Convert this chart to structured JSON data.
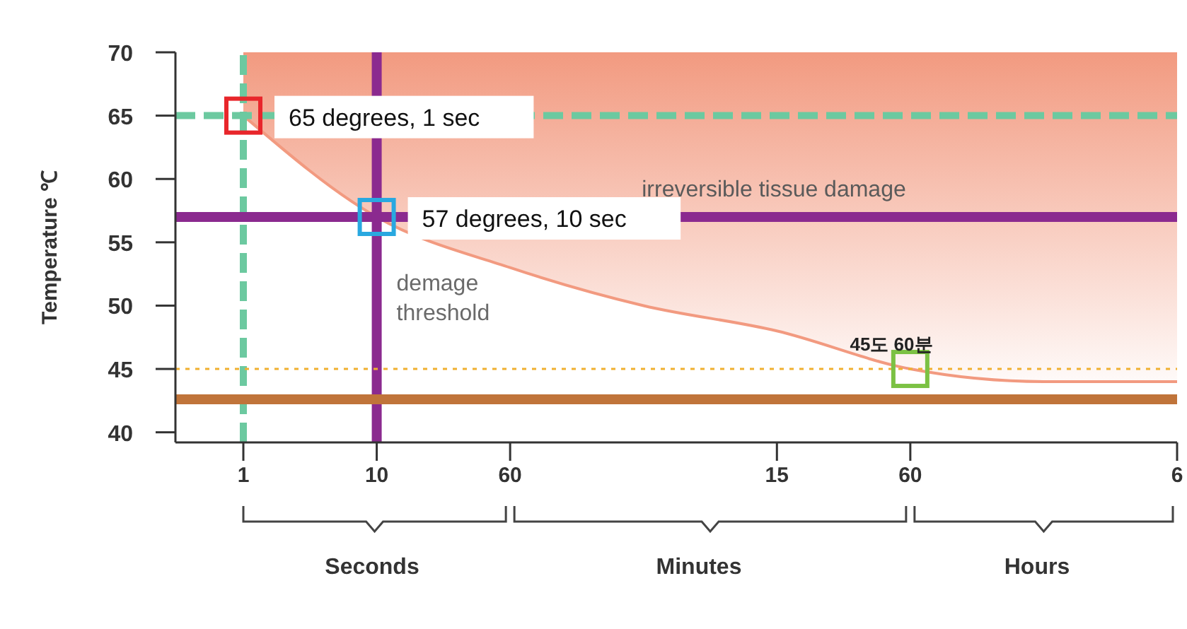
{
  "chart_data": {
    "type": "line",
    "ylabel": "Temperature ℃",
    "categories": [
      "1",
      "10",
      "60",
      null,
      "15",
      "60",
      null,
      "6"
    ],
    "ylim": [
      39.2,
      70
    ],
    "yticks": [
      40,
      45,
      50,
      55,
      60,
      65,
      70
    ],
    "series": [
      {
        "color": "#f29a80",
        "values": [
          65,
          57,
          53,
          50,
          48,
          45,
          44,
          44
        ],
        "lower": [
          65,
          57,
          53,
          50,
          48,
          45,
          44,
          44
        ],
        "upper": [
          70,
          70,
          70,
          70,
          70,
          70,
          70,
          70
        ]
      },
      {
        "type": "scatter",
        "marker": "square",
        "values": [
          65,
          57,
          null,
          null,
          null,
          45,
          null,
          null
        ],
        "colors": [
          "#e8262b",
          "#29a8e0",
          null,
          null,
          null,
          "#7bc143",
          null,
          null
        ]
      }
    ],
    "ref_lines": [
      {
        "axis": "y",
        "value": 65,
        "color": "#6cc9a0",
        "line_style": "dashed"
      },
      {
        "axis": "x",
        "value": "1",
        "color": "#6cc9a0",
        "line_style": "dashed"
      },
      {
        "axis": "y",
        "value": 57,
        "color": "#8b2a8f",
        "line_style": "solid"
      },
      {
        "axis": "x",
        "value": "10",
        "color": "#8b2a8f",
        "line_style": "solid",
        "label": "demage threshold"
      },
      {
        "axis": "y",
        "value": 45,
        "color": "#f0b030",
        "line_style": "dotted"
      },
      {
        "axis": "y",
        "value": 42.6,
        "color": "#c0743a",
        "line_style": "solid"
      }
    ],
    "annotations": [
      {
        "text": "65 degrees, 1 sec",
        "x": "1",
        "y": 65
      },
      {
        "text": "57 degrees, 10 sec",
        "x": "10",
        "y": 57
      },
      "irreversible tissue damage",
      "45도 60분",
      "Seconds",
      "Minutes",
      "Hours"
    ]
  }
}
